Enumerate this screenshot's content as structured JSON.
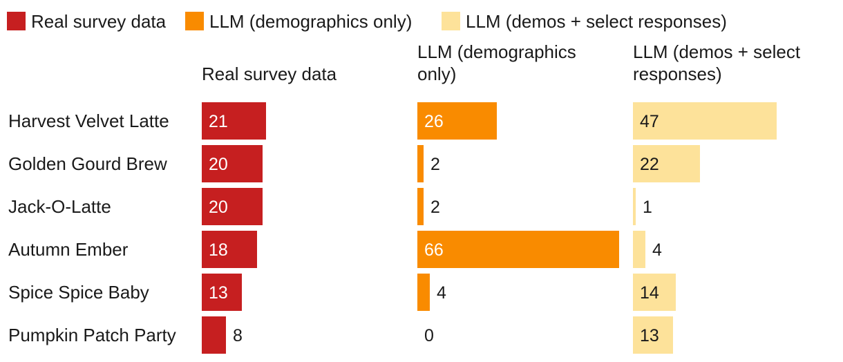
{
  "chart_data": {
    "type": "bar",
    "orientation": "horizontal",
    "layout": "small-multiples",
    "categories": [
      "Harvest Velvet Latte",
      "Golden Gourd Brew",
      "Jack-O-Latte",
      "Autumn Ember",
      "Spice Spice Baby",
      "Pumpkin Patch Party"
    ],
    "series": [
      {
        "name": "Real survey data",
        "title_lines": [
          "Real survey data"
        ],
        "color": "#c61f20",
        "text_color": "#ffffff",
        "values": [
          21,
          20,
          20,
          18,
          13,
          8
        ]
      },
      {
        "name": "LLM (demographics only)",
        "title_lines": [
          "LLM (demographics",
          "only)"
        ],
        "color": "#f98b00",
        "text_color": "#ffffff",
        "values": [
          26,
          2,
          2,
          66,
          4,
          0
        ]
      },
      {
        "name": "LLM (demos + select responses)",
        "title_lines": [
          "LLM (demos + select",
          "responses)"
        ],
        "color": "#fde29a",
        "text_color": "#1a1a1a",
        "values": [
          47,
          22,
          1,
          4,
          14,
          13
        ]
      }
    ],
    "xlim": [
      0,
      66
    ],
    "legend": "top-left",
    "grid": false,
    "title": "",
    "xlabel": "",
    "ylabel": ""
  }
}
